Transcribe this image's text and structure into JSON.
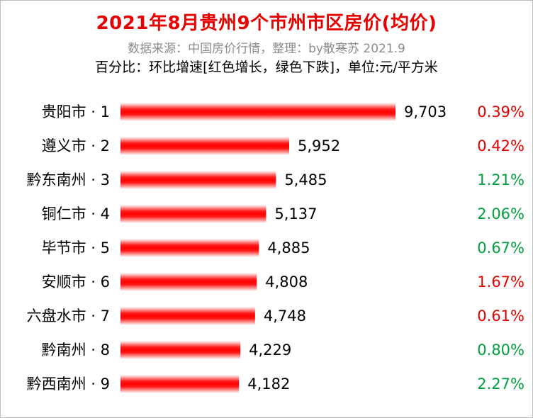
{
  "title": "2021年8月贵州9个市州市区房价(均价)",
  "subtitle": "数据来源：中国房价行情，整理：by散寒苏  2021.9",
  "note": "百分比：环比增速[红色增长，绿色下跌]，单位:元/平方米",
  "colors": {
    "title": "#e60000",
    "bar": "#ff0000",
    "up": "#e60000",
    "down": "#00a040"
  },
  "chart_data": {
    "type": "bar",
    "orientation": "horizontal",
    "categories": [
      "贵阳市 · 1",
      "遵义市 · 2",
      "黔东南州 · 3",
      "铜仁市 · 4",
      "毕节市 · 5",
      "安顺市 · 6",
      "六盘水市 · 7",
      "黔南州 · 8",
      "黔西南州 · 9"
    ],
    "values": [
      9703,
      5952,
      5485,
      5137,
      4885,
      4808,
      4748,
      4229,
      4182
    ],
    "value_labels": [
      "9,703",
      "5,952",
      "5,485",
      "5,137",
      "4,885",
      "4,808",
      "4,748",
      "4,229",
      "4,182"
    ],
    "change_labels": [
      "0.39%",
      "0.42%",
      "1.21%",
      "2.06%",
      "0.67%",
      "1.67%",
      "0.61%",
      "0.80%",
      "2.27%"
    ],
    "change_colors": [
      "up",
      "up",
      "down",
      "down",
      "down",
      "up",
      "up",
      "down",
      "down"
    ],
    "xlim": [
      0,
      9703
    ]
  }
}
